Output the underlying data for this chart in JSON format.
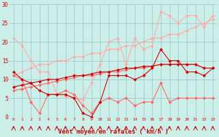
{
  "title": "",
  "xlabel": "Vent moyen/en rafales ( km/h )",
  "bg_color": "#cceee8",
  "grid_color": "#99cccc",
  "x": [
    0,
    1,
    2,
    3,
    4,
    5,
    6,
    7,
    8,
    9,
    10,
    11,
    12,
    13,
    14,
    15,
    16,
    17,
    18,
    19,
    20,
    21,
    22,
    23
  ],
  "light_pink": "#ffaaaa",
  "med_pink": "#ff6666",
  "dark_red": "#cc0000",
  "lp_zigzag": [
    21,
    19,
    15,
    12,
    12,
    6,
    5.5,
    5,
    4.5,
    9,
    14,
    20,
    21,
    14,
    21,
    18,
    19,
    28,
    27,
    25,
    27,
    27,
    24,
    27
  ],
  "lp_trend": [
    11,
    12,
    13,
    14,
    14,
    15,
    15,
    16,
    16,
    17,
    17,
    18,
    18,
    19,
    19,
    20,
    21,
    21,
    22,
    22,
    23,
    24,
    25,
    26
  ],
  "mp_zigzag": [
    11,
    10,
    4,
    1,
    6,
    6,
    7,
    6,
    3,
    1,
    4,
    5,
    4,
    5,
    3,
    4,
    4,
    9,
    4,
    5,
    5,
    5,
    5,
    5
  ],
  "mp_trend": [
    7,
    7.5,
    8,
    8.5,
    9,
    9.5,
    10,
    10.5,
    11,
    11,
    11.5,
    12,
    12,
    12.5,
    13,
    13,
    13.5,
    14,
    14,
    14,
    14,
    14,
    13,
    13
  ],
  "dr_zigzag": [
    12,
    10,
    9,
    7,
    6,
    6,
    6,
    5,
    1,
    0,
    4,
    11,
    11,
    11,
    10,
    11,
    13,
    18,
    15,
    15,
    12,
    12,
    11,
    13
  ],
  "dr_trend": [
    8,
    8.5,
    9,
    9.5,
    10,
    10,
    10.5,
    11,
    11,
    11.5,
    12,
    12,
    12.5,
    13,
    13,
    13.5,
    13.5,
    14,
    14,
    14,
    14,
    14,
    13,
    13
  ],
  "ylim": [
    0,
    30
  ],
  "xlim": [
    -0.5,
    23.5
  ],
  "yticks": [
    0,
    5,
    10,
    15,
    20,
    25,
    30
  ],
  "xticks": [
    0,
    1,
    2,
    3,
    4,
    5,
    6,
    7,
    8,
    9,
    10,
    11,
    12,
    13,
    14,
    15,
    16,
    17,
    18,
    19,
    20,
    21,
    22,
    23
  ],
  "marker_size": 2.5,
  "line_width": 0.8
}
